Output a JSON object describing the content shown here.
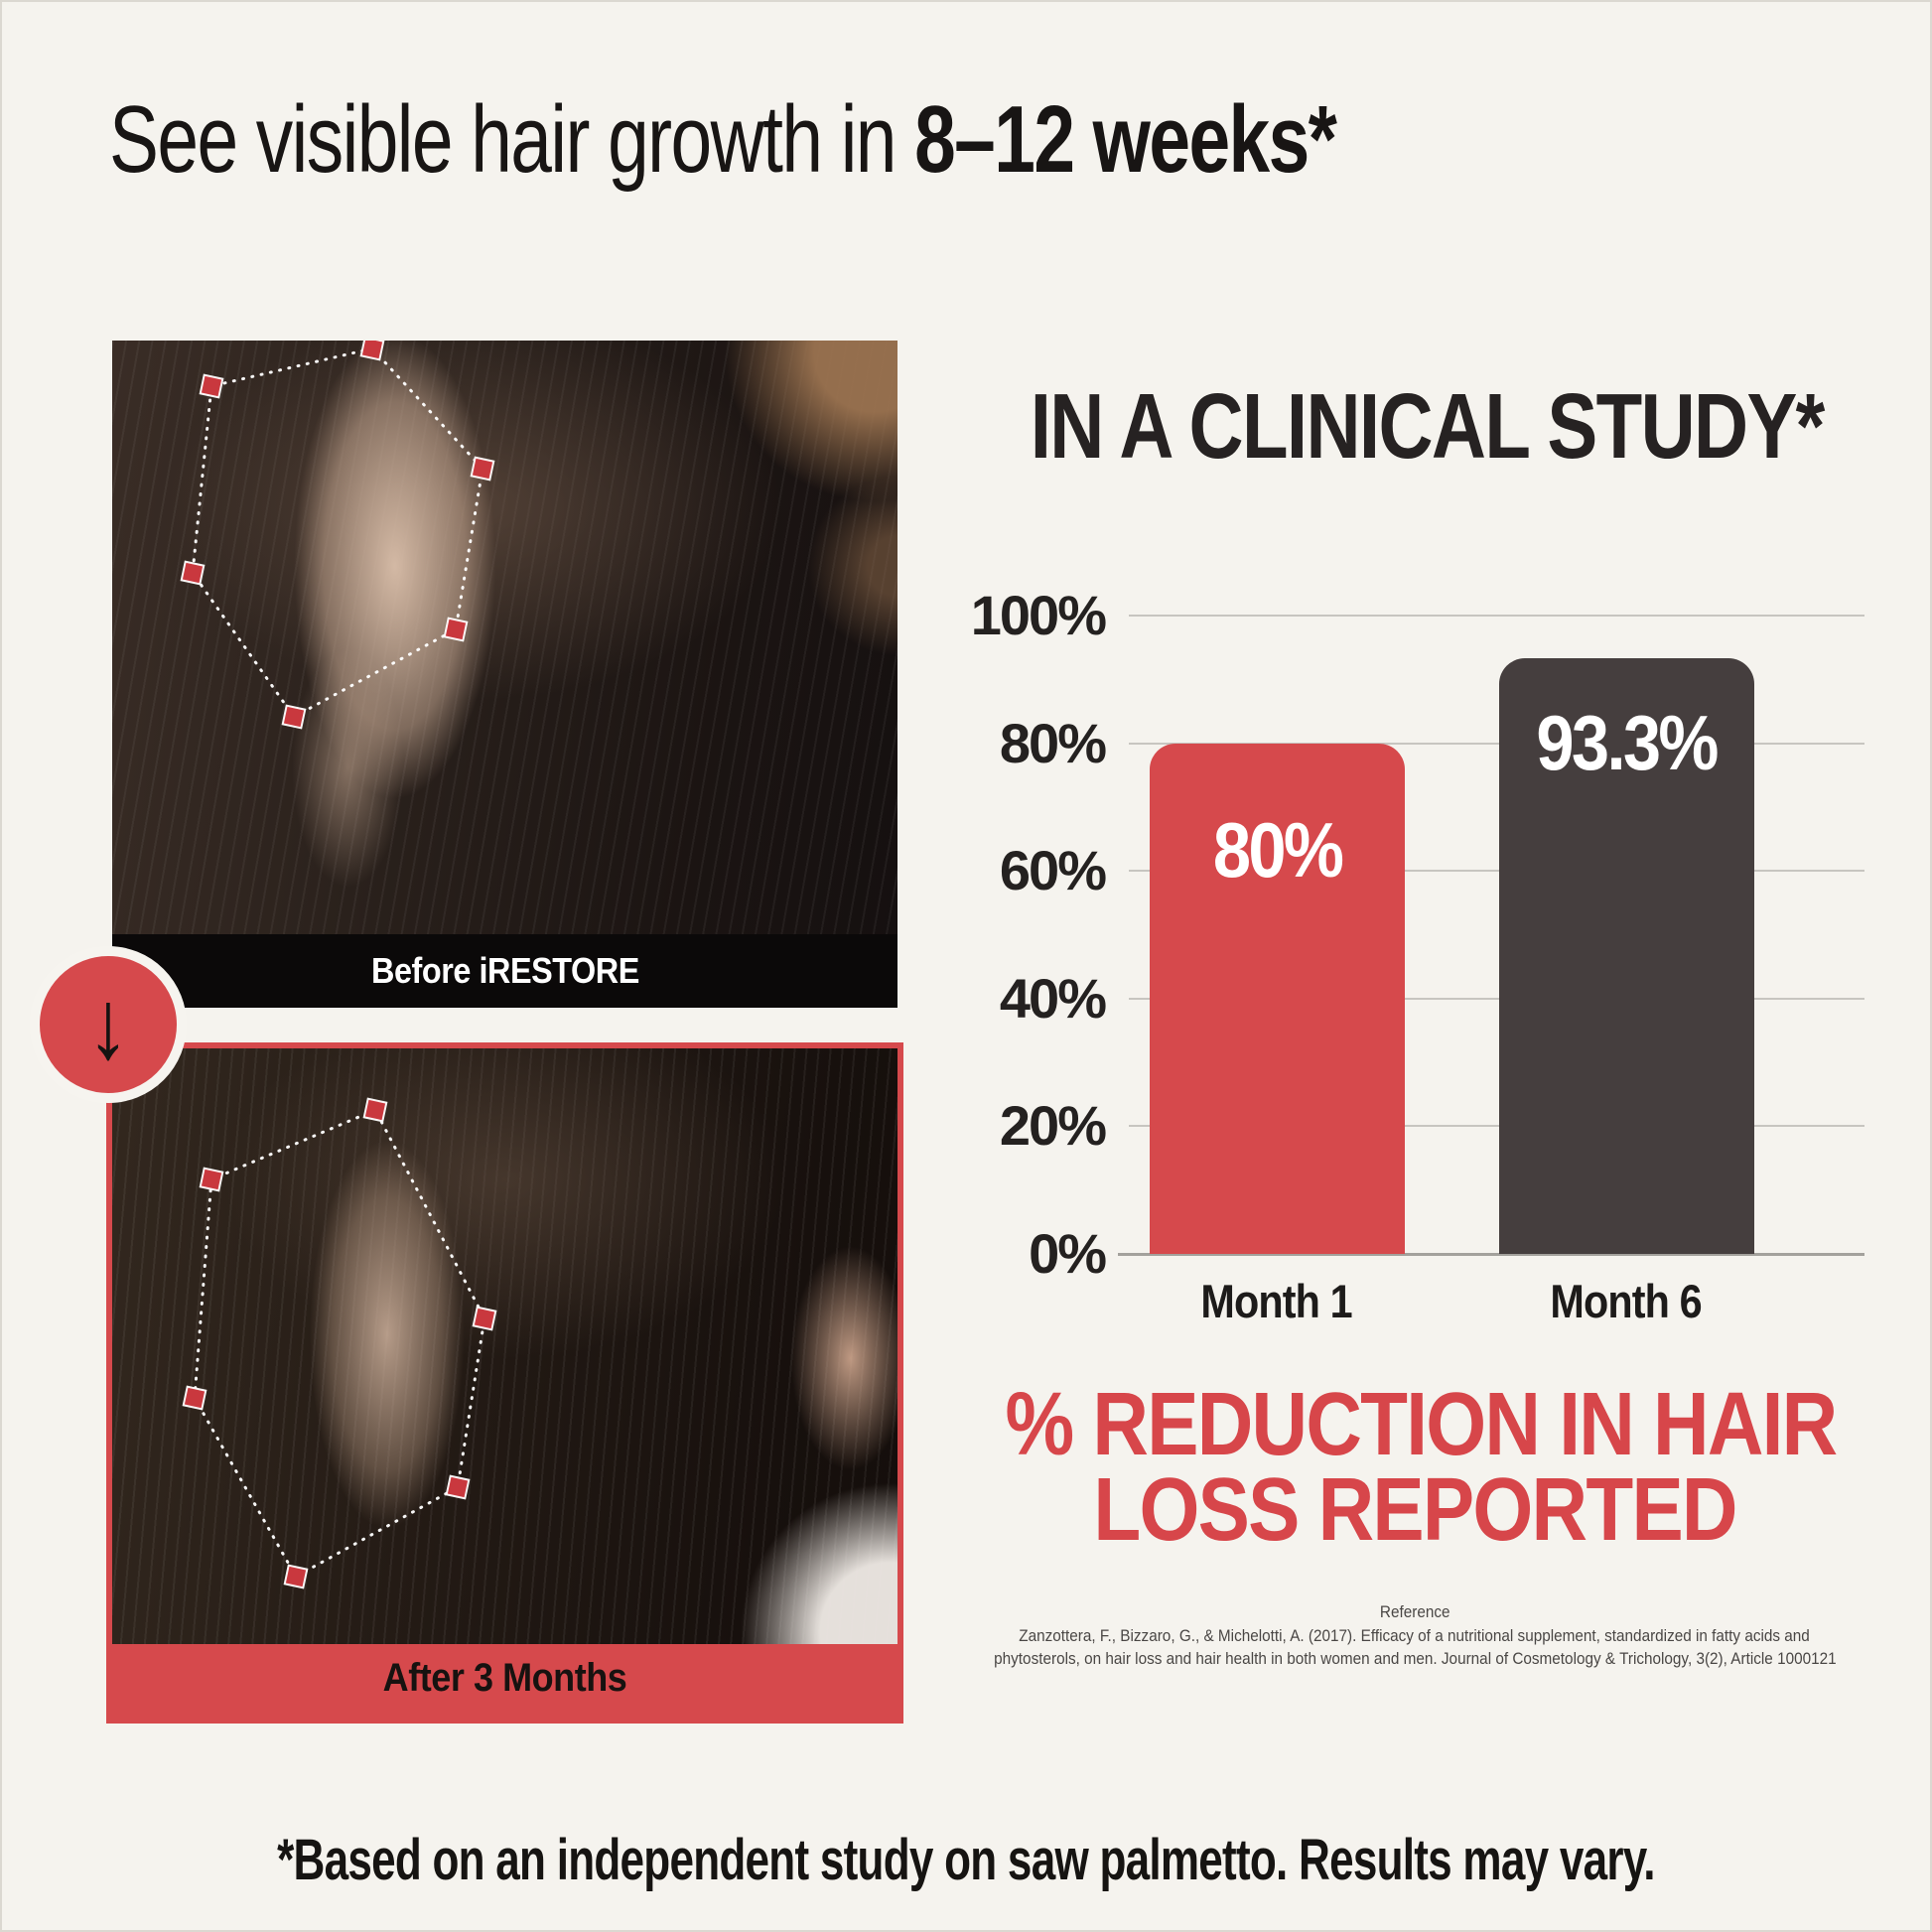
{
  "title": {
    "prefix": "See visible hair growth in ",
    "bold": "8–12 weeks*"
  },
  "before_after": {
    "before_caption": "Before iRESTORE",
    "after_caption": "After 3 Months",
    "arrow_icon": "↓"
  },
  "chart_data": {
    "type": "bar",
    "title": "IN A CLINICAL STUDY*",
    "categories": [
      "Month 1",
      "Month 6"
    ],
    "values": [
      80,
      93.3
    ],
    "bar_labels": [
      "80%",
      "93.3%"
    ],
    "bar_colors": [
      "#d6494c",
      "#453e3e"
    ],
    "y_ticks": [
      "100%",
      "80%",
      "60%",
      "40%",
      "20%",
      "0%"
    ],
    "ylim": [
      0,
      100
    ],
    "grid": true,
    "legend": "none",
    "caption_line1": "% REDUCTION IN HAIR",
    "caption_line2": "LOSS REPORTED"
  },
  "reference": {
    "label": "Reference",
    "line1": "Zanzottera, F., Bizzaro, G., & Michelotti, A. (2017). Efficacy of a nutritional supplement, standardized in fatty acids and",
    "line2": "phytosterols, on hair loss and hair health in both women and men. Journal of Cosmetology & Trichology, 3(2), Article 1000121"
  },
  "footer": {
    "text": "*Based on an independent study on saw palmetto. Results may vary."
  },
  "colors": {
    "background": "#f5f3ee",
    "accent_red": "#d6494c",
    "bar_dark": "#453e3e",
    "caption_black": "#0b0909"
  }
}
